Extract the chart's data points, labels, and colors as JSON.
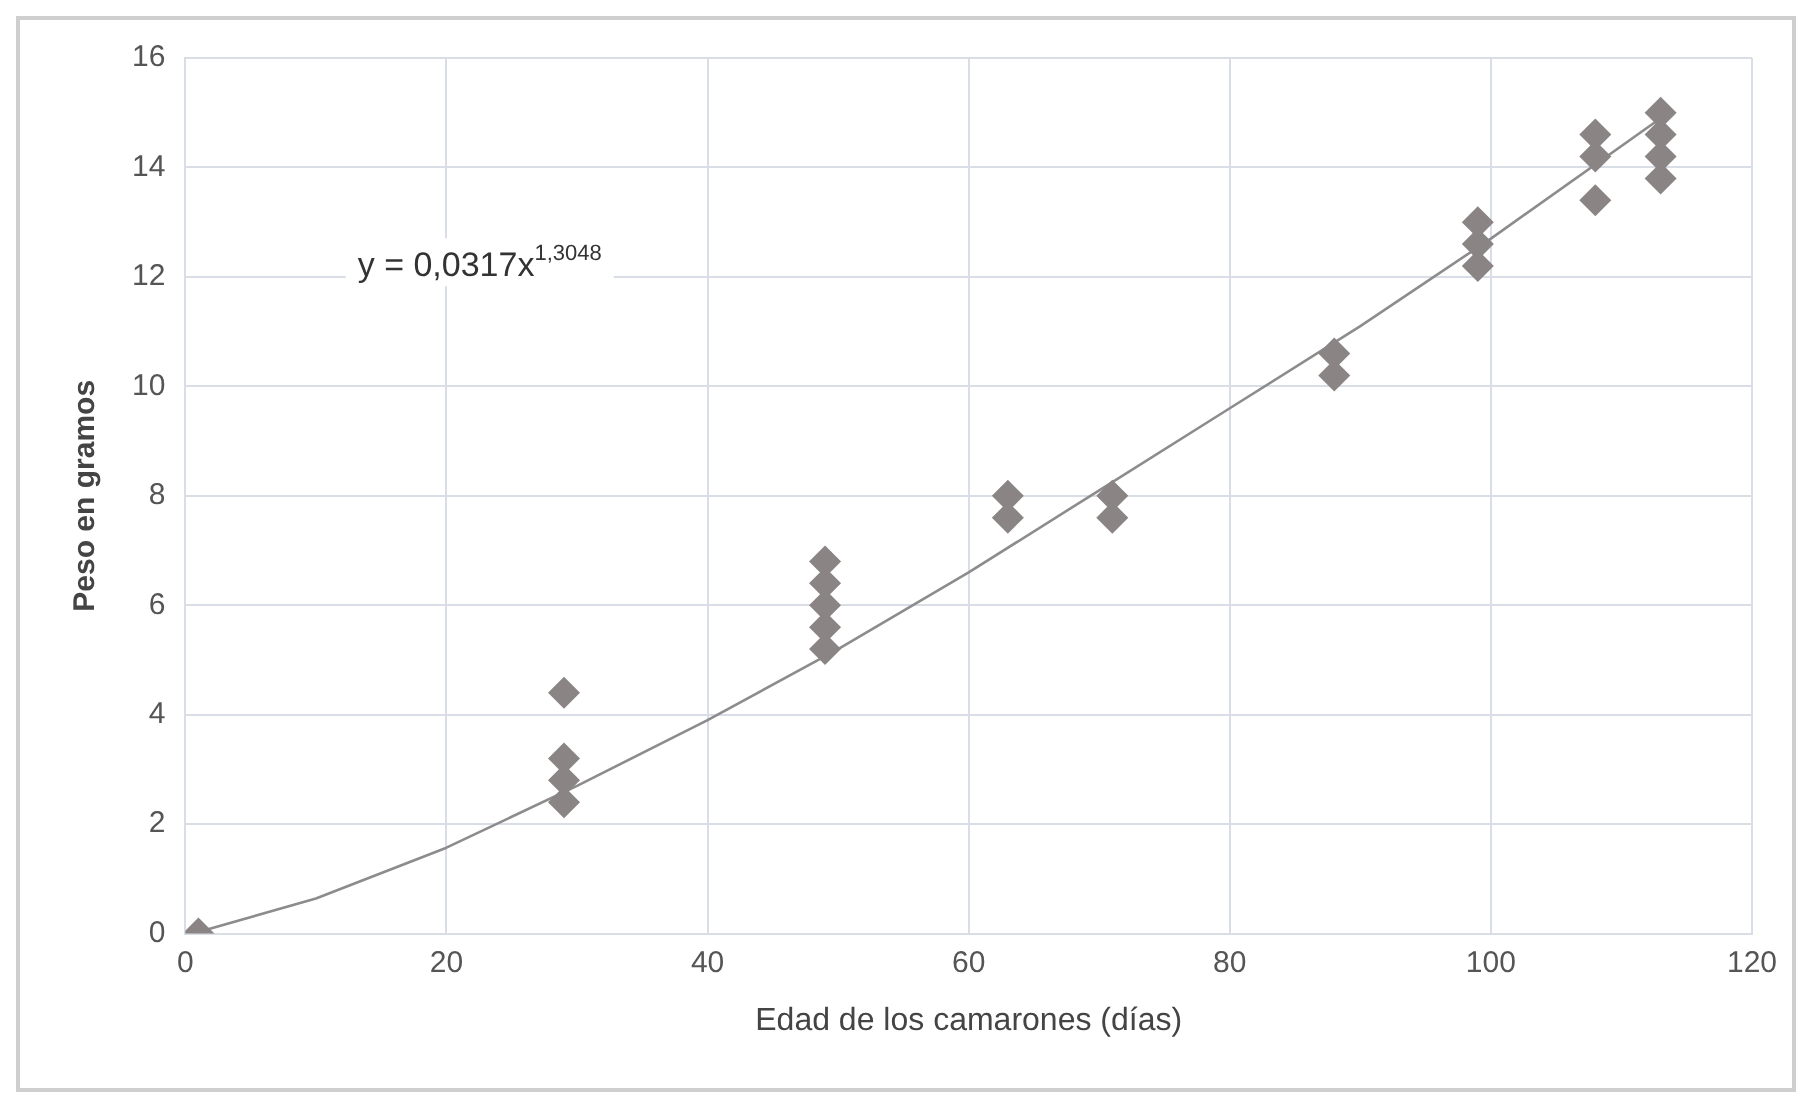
{
  "chart_data": {
    "type": "scatter",
    "xlabel": "Edad de los camarones (días)",
    "ylabel": "Peso en gramos",
    "series": [
      {
        "type": "scatter",
        "color": "#8a8484",
        "marker": "diamond",
        "x": [
          1,
          29,
          29,
          29,
          29,
          49,
          49,
          49,
          49,
          49,
          63,
          63,
          71,
          71,
          88,
          88,
          99,
          99,
          99,
          108,
          108,
          108,
          113,
          113,
          113,
          113
        ],
        "values": [
          0,
          2.4,
          2.8,
          3.2,
          4.4,
          5.2,
          5.6,
          6,
          6.4,
          6.8,
          7.6,
          8,
          7.6,
          8,
          10.2,
          10.6,
          12.2,
          12.6,
          13,
          13.4,
          14.2,
          14.6,
          13.8,
          14.2,
          14.6,
          15
        ]
      },
      {
        "type": "line",
        "color": "#8c8c8c",
        "marker": "none",
        "x": [
          1,
          10,
          20,
          30,
          40,
          50,
          60,
          70,
          80,
          90,
          100,
          113
        ],
        "values": [
          0.03,
          0.64,
          1.57,
          2.7,
          3.9,
          5.2,
          6.6,
          8.1,
          9.6,
          11.1,
          12.7,
          14.9
        ]
      }
    ],
    "annotations": [
      "y = 0,0317x$^{1,3048}$"
    ],
    "xlim": [
      0,
      120
    ],
    "xticks": [
      0,
      20,
      40,
      60,
      80,
      100,
      120
    ],
    "ylim": [
      0,
      16
    ],
    "yticks": [
      0,
      2,
      4,
      6,
      8,
      10,
      12,
      14,
      16
    ],
    "grid": true,
    "legend": false
  }
}
